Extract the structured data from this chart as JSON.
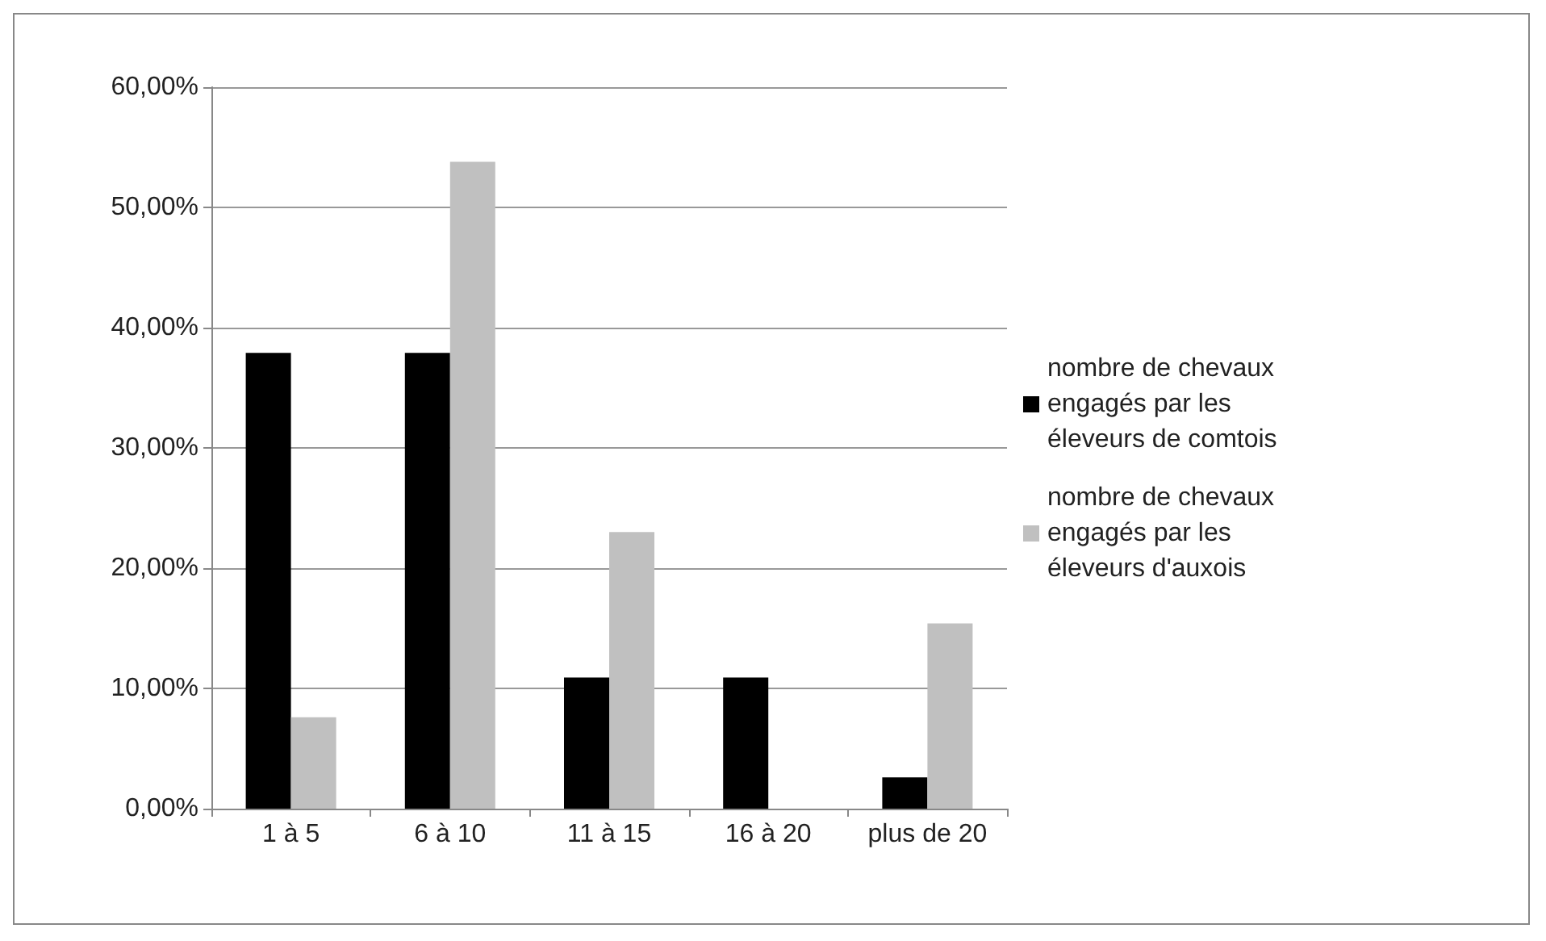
{
  "chart_data": {
    "type": "bar",
    "categories": [
      "1 à 5",
      "6 à 10",
      "11 à 15",
      "16 à 20",
      "plus de 20"
    ],
    "series": [
      {
        "name": "nombre de chevaux engagés par les éleveurs de comtois",
        "color": "#000000",
        "values": [
          37.9,
          37.9,
          10.9,
          10.9,
          2.6
        ]
      },
      {
        "name": "nombre de chevaux engagés par les éleveurs d'auxois",
        "color": "#c0c0c0",
        "values": [
          7.6,
          53.8,
          23.0,
          0,
          15.4
        ]
      }
    ],
    "ylim": [
      0,
      60
    ],
    "yticks": [
      {
        "value": 0,
        "label": "0,00%"
      },
      {
        "value": 10,
        "label": "10,00%"
      },
      {
        "value": 20,
        "label": "20,00%"
      },
      {
        "value": 30,
        "label": "30,00%"
      },
      {
        "value": 40,
        "label": "40,00%"
      },
      {
        "value": 50,
        "label": "50,00%"
      },
      {
        "value": 60,
        "label": "60,00%"
      }
    ],
    "grid": "y",
    "legend": "right"
  }
}
